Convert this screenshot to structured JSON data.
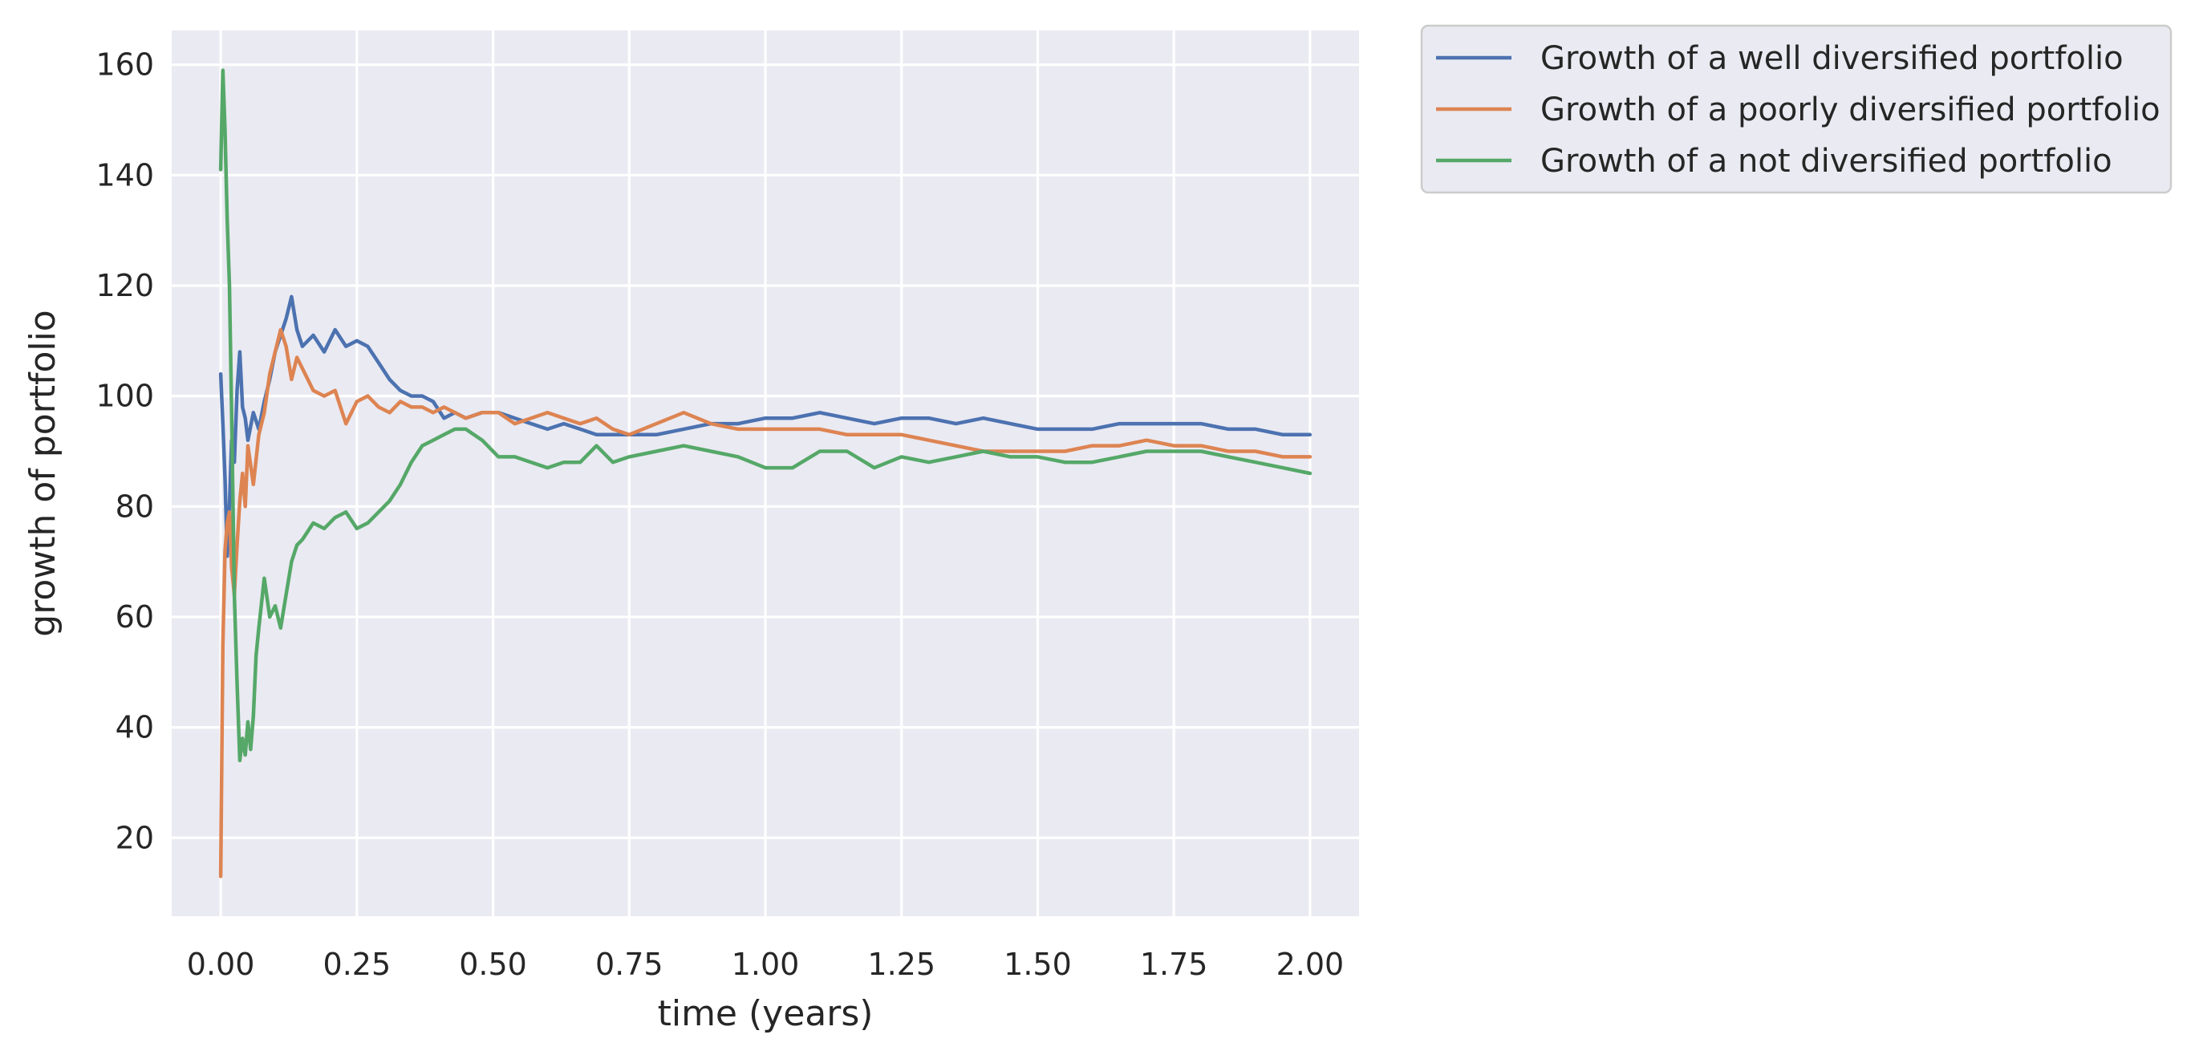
{
  "chart_data": {
    "type": "line",
    "title": "",
    "xlabel": "time (years)",
    "ylabel": "growth of portfolio",
    "xlim": [
      -0.09,
      2.09
    ],
    "ylim": [
      5.8,
      166.2
    ],
    "xticks": [
      0.0,
      0.25,
      0.5,
      0.75,
      1.0,
      1.25,
      1.5,
      1.75,
      2.0
    ],
    "xtick_labels": [
      "0.00",
      "0.25",
      "0.50",
      "0.75",
      "1.00",
      "1.25",
      "1.50",
      "1.75",
      "2.00"
    ],
    "yticks": [
      20,
      40,
      60,
      80,
      100,
      120,
      140,
      160
    ],
    "ytick_labels": [
      "20",
      "40",
      "60",
      "80",
      "100",
      "120",
      "140",
      "160"
    ],
    "grid": true,
    "legend_position": "outside-top-right",
    "colors": {
      "background": "#EAEAF2",
      "grid": "#FFFFFF",
      "legend_background": "#EAEAF2",
      "legend_border": "#CCCCCC"
    },
    "series": [
      {
        "name": "Growth of a well diversified portfolio",
        "color": "#4C72B0",
        "x": [
          0.0,
          0.004,
          0.008,
          0.012,
          0.016,
          0.02,
          0.025,
          0.03,
          0.035,
          0.04,
          0.045,
          0.05,
          0.06,
          0.07,
          0.08,
          0.09,
          0.1,
          0.11,
          0.12,
          0.13,
          0.14,
          0.15,
          0.17,
          0.19,
          0.21,
          0.23,
          0.25,
          0.27,
          0.29,
          0.31,
          0.33,
          0.35,
          0.37,
          0.39,
          0.41,
          0.43,
          0.45,
          0.48,
          0.51,
          0.54,
          0.57,
          0.6,
          0.63,
          0.66,
          0.69,
          0.72,
          0.75,
          0.8,
          0.85,
          0.9,
          0.95,
          1.0,
          1.05,
          1.1,
          1.15,
          1.2,
          1.25,
          1.3,
          1.35,
          1.4,
          1.45,
          1.5,
          1.55,
          1.6,
          1.65,
          1.7,
          1.75,
          1.8,
          1.85,
          1.9,
          1.95,
          2.0
        ],
        "y": [
          104,
          95,
          85,
          71,
          80,
          92,
          88,
          101,
          108,
          98,
          96,
          92,
          97,
          94,
          99,
          103,
          108,
          111,
          114,
          118,
          112,
          109,
          111,
          108,
          112,
          109,
          110,
          109,
          106,
          103,
          101,
          100,
          100,
          99,
          96,
          97,
          96,
          97,
          97,
          96,
          95,
          94,
          95,
          94,
          93,
          93,
          93,
          93,
          94,
          95,
          95,
          96,
          96,
          97,
          96,
          95,
          96,
          96,
          95,
          96,
          95,
          94,
          94,
          94,
          95,
          95,
          95,
          95,
          94,
          94,
          93,
          93
        ]
      },
      {
        "name": "Growth of a poorly diversified portfolio",
        "color": "#DD8452",
        "x": [
          0.0,
          0.004,
          0.008,
          0.012,
          0.016,
          0.02,
          0.025,
          0.03,
          0.035,
          0.04,
          0.045,
          0.05,
          0.06,
          0.07,
          0.08,
          0.09,
          0.1,
          0.11,
          0.12,
          0.13,
          0.14,
          0.15,
          0.17,
          0.19,
          0.21,
          0.23,
          0.25,
          0.27,
          0.29,
          0.31,
          0.33,
          0.35,
          0.37,
          0.39,
          0.41,
          0.43,
          0.45,
          0.48,
          0.51,
          0.54,
          0.57,
          0.6,
          0.63,
          0.66,
          0.69,
          0.72,
          0.75,
          0.8,
          0.85,
          0.9,
          0.95,
          1.0,
          1.05,
          1.1,
          1.15,
          1.2,
          1.25,
          1.3,
          1.35,
          1.4,
          1.45,
          1.5,
          1.55,
          1.6,
          1.65,
          1.7,
          1.75,
          1.8,
          1.85,
          1.9,
          1.95,
          2.0
        ],
        "y": [
          13,
          55,
          72,
          77,
          79,
          69,
          64,
          73,
          81,
          86,
          80,
          91,
          84,
          93,
          97,
          104,
          108,
          112,
          109,
          103,
          107,
          105,
          101,
          100,
          101,
          95,
          99,
          100,
          98,
          97,
          99,
          98,
          98,
          97,
          98,
          97,
          96,
          97,
          97,
          95,
          96,
          97,
          96,
          95,
          96,
          94,
          93,
          95,
          97,
          95,
          94,
          94,
          94,
          94,
          93,
          93,
          93,
          92,
          91,
          90,
          90,
          90,
          90,
          91,
          91,
          92,
          91,
          91,
          90,
          90,
          89,
          89
        ]
      },
      {
        "name": "Growth of a not diversified portfolio",
        "color": "#55A868",
        "x": [
          0.0,
          0.004,
          0.008,
          0.012,
          0.016,
          0.02,
          0.025,
          0.03,
          0.035,
          0.04,
          0.045,
          0.05,
          0.055,
          0.06,
          0.065,
          0.07,
          0.08,
          0.09,
          0.1,
          0.11,
          0.12,
          0.13,
          0.14,
          0.15,
          0.17,
          0.19,
          0.21,
          0.23,
          0.25,
          0.27,
          0.29,
          0.31,
          0.33,
          0.35,
          0.37,
          0.39,
          0.41,
          0.43,
          0.45,
          0.48,
          0.51,
          0.54,
          0.57,
          0.6,
          0.63,
          0.66,
          0.69,
          0.72,
          0.75,
          0.8,
          0.85,
          0.9,
          0.95,
          1.0,
          1.05,
          1.1,
          1.15,
          1.2,
          1.25,
          1.3,
          1.35,
          1.4,
          1.45,
          1.5,
          1.55,
          1.6,
          1.65,
          1.7,
          1.75,
          1.8,
          1.85,
          1.9,
          1.95,
          2.0
        ],
        "y": [
          141,
          159,
          148,
          132,
          120,
          97,
          64,
          48,
          34,
          38,
          35,
          41,
          36,
          42,
          53,
          58,
          67,
          60,
          62,
          58,
          64,
          70,
          73,
          74,
          77,
          76,
          78,
          79,
          76,
          77,
          79,
          81,
          84,
          88,
          91,
          92,
          93,
          94,
          94,
          92,
          89,
          89,
          88,
          87,
          88,
          88,
          91,
          88,
          89,
          90,
          91,
          90,
          89,
          87,
          87,
          90,
          90,
          87,
          89,
          88,
          89,
          90,
          89,
          89,
          88,
          88,
          89,
          90,
          90,
          90,
          89,
          88,
          87,
          86
        ]
      }
    ]
  }
}
